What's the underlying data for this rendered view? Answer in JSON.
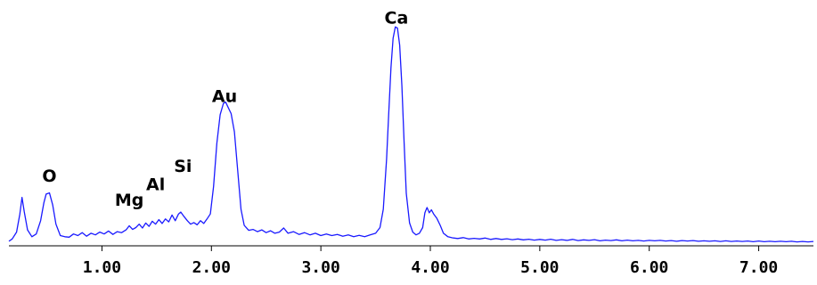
{
  "chart_data": {
    "type": "line",
    "title": "",
    "xlabel": "",
    "ylabel": "",
    "xlim": [
      0.15,
      7.5
    ],
    "ylim": [
      0,
      1000
    ],
    "grid": false,
    "legend": "none",
    "line_color": "#1a1aff",
    "x_ticks": [
      1.0,
      2.0,
      3.0,
      4.0,
      5.0,
      6.0,
      7.0
    ],
    "x_tick_labels": [
      "1.00",
      "2.00",
      "3.00",
      "4.00",
      "5.00",
      "6.00",
      "7.00"
    ],
    "peaks": [
      {
        "label": "O",
        "x": 0.52,
        "y": 282
      },
      {
        "label": "Mg",
        "x": 1.25,
        "y": 175
      },
      {
        "label": "Al",
        "x": 1.49,
        "y": 245
      },
      {
        "label": "Si",
        "x": 1.74,
        "y": 325
      },
      {
        "label": "Au",
        "x": 2.12,
        "y": 630
      },
      {
        "label": "Ca",
        "x": 3.69,
        "y": 975
      }
    ],
    "series": [
      {
        "values": [
          [
            0.15,
            20
          ],
          [
            0.18,
            30
          ],
          [
            0.22,
            60
          ],
          [
            0.25,
            140
          ],
          [
            0.27,
            212
          ],
          [
            0.29,
            150
          ],
          [
            0.32,
            70
          ],
          [
            0.36,
            40
          ],
          [
            0.4,
            52
          ],
          [
            0.44,
            110
          ],
          [
            0.47,
            190
          ],
          [
            0.49,
            227
          ],
          [
            0.52,
            232
          ],
          [
            0.55,
            180
          ],
          [
            0.58,
            95
          ],
          [
            0.62,
            45
          ],
          [
            0.66,
            40
          ],
          [
            0.7,
            38
          ],
          [
            0.74,
            52
          ],
          [
            0.78,
            45
          ],
          [
            0.82,
            58
          ],
          [
            0.86,
            42
          ],
          [
            0.9,
            55
          ],
          [
            0.94,
            48
          ],
          [
            0.98,
            60
          ],
          [
            1.02,
            52
          ],
          [
            1.06,
            65
          ],
          [
            1.1,
            50
          ],
          [
            1.14,
            62
          ],
          [
            1.18,
            58
          ],
          [
            1.22,
            70
          ],
          [
            1.25,
            88
          ],
          [
            1.28,
            72
          ],
          [
            1.31,
            80
          ],
          [
            1.34,
            95
          ],
          [
            1.37,
            78
          ],
          [
            1.4,
            100
          ],
          [
            1.43,
            85
          ],
          [
            1.46,
            108
          ],
          [
            1.49,
            95
          ],
          [
            1.52,
            115
          ],
          [
            1.55,
            98
          ],
          [
            1.58,
            118
          ],
          [
            1.61,
            105
          ],
          [
            1.64,
            135
          ],
          [
            1.67,
            110
          ],
          [
            1.7,
            140
          ],
          [
            1.72,
            148
          ],
          [
            1.75,
            128
          ],
          [
            1.78,
            110
          ],
          [
            1.81,
            95
          ],
          [
            1.84,
            102
          ],
          [
            1.87,
            92
          ],
          [
            1.9,
            110
          ],
          [
            1.93,
            98
          ],
          [
            1.96,
            118
          ],
          [
            1.99,
            140
          ],
          [
            2.02,
            260
          ],
          [
            2.05,
            450
          ],
          [
            2.08,
            575
          ],
          [
            2.11,
            625
          ],
          [
            2.13,
            630
          ],
          [
            2.15,
            610
          ],
          [
            2.18,
            580
          ],
          [
            2.21,
            500
          ],
          [
            2.24,
            330
          ],
          [
            2.27,
            160
          ],
          [
            2.3,
            90
          ],
          [
            2.34,
            68
          ],
          [
            2.38,
            72
          ],
          [
            2.42,
            62
          ],
          [
            2.46,
            70
          ],
          [
            2.5,
            58
          ],
          [
            2.54,
            66
          ],
          [
            2.58,
            55
          ],
          [
            2.62,
            60
          ],
          [
            2.66,
            78
          ],
          [
            2.7,
            55
          ],
          [
            2.75,
            62
          ],
          [
            2.8,
            50
          ],
          [
            2.85,
            58
          ],
          [
            2.9,
            48
          ],
          [
            2.95,
            55
          ],
          [
            3.0,
            45
          ],
          [
            3.05,
            52
          ],
          [
            3.1,
            45
          ],
          [
            3.15,
            50
          ],
          [
            3.2,
            42
          ],
          [
            3.25,
            48
          ],
          [
            3.3,
            40
          ],
          [
            3.35,
            46
          ],
          [
            3.4,
            40
          ],
          [
            3.45,
            48
          ],
          [
            3.5,
            55
          ],
          [
            3.54,
            80
          ],
          [
            3.57,
            160
          ],
          [
            3.6,
            380
          ],
          [
            3.62,
            580
          ],
          [
            3.64,
            780
          ],
          [
            3.66,
            910
          ],
          [
            3.68,
            960
          ],
          [
            3.7,
            955
          ],
          [
            3.72,
            880
          ],
          [
            3.74,
            700
          ],
          [
            3.76,
            460
          ],
          [
            3.78,
            230
          ],
          [
            3.81,
            100
          ],
          [
            3.84,
            60
          ],
          [
            3.87,
            48
          ],
          [
            3.9,
            55
          ],
          [
            3.93,
            80
          ],
          [
            3.95,
            145
          ],
          [
            3.97,
            168
          ],
          [
            3.99,
            145
          ],
          [
            4.01,
            158
          ],
          [
            4.03,
            140
          ],
          [
            4.06,
            120
          ],
          [
            4.09,
            90
          ],
          [
            4.12,
            55
          ],
          [
            4.16,
            40
          ],
          [
            4.2,
            35
          ],
          [
            4.25,
            32
          ],
          [
            4.3,
            36
          ],
          [
            4.35,
            30
          ],
          [
            4.4,
            33
          ],
          [
            4.45,
            30
          ],
          [
            4.5,
            34
          ],
          [
            4.55,
            28
          ],
          [
            4.6,
            32
          ],
          [
            4.65,
            28
          ],
          [
            4.7,
            31
          ],
          [
            4.75,
            27
          ],
          [
            4.8,
            30
          ],
          [
            4.85,
            26
          ],
          [
            4.9,
            29
          ],
          [
            4.95,
            25
          ],
          [
            5.0,
            28
          ],
          [
            5.05,
            25
          ],
          [
            5.1,
            29
          ],
          [
            5.15,
            24
          ],
          [
            5.2,
            27
          ],
          [
            5.25,
            24
          ],
          [
            5.3,
            28
          ],
          [
            5.35,
            23
          ],
          [
            5.4,
            26
          ],
          [
            5.45,
            24
          ],
          [
            5.5,
            27
          ],
          [
            5.55,
            22
          ],
          [
            5.6,
            25
          ],
          [
            5.65,
            23
          ],
          [
            5.7,
            26
          ],
          [
            5.75,
            22
          ],
          [
            5.8,
            25
          ],
          [
            5.85,
            22
          ],
          [
            5.9,
            24
          ],
          [
            5.95,
            21
          ],
          [
            6.0,
            24
          ],
          [
            6.05,
            22
          ],
          [
            6.1,
            24
          ],
          [
            6.15,
            21
          ],
          [
            6.2,
            23
          ],
          [
            6.25,
            20
          ],
          [
            6.3,
            23
          ],
          [
            6.35,
            21
          ],
          [
            6.4,
            23
          ],
          [
            6.45,
            20
          ],
          [
            6.5,
            22
          ],
          [
            6.55,
            20
          ],
          [
            6.6,
            22
          ],
          [
            6.65,
            19
          ],
          [
            6.7,
            22
          ],
          [
            6.75,
            19
          ],
          [
            6.8,
            21
          ],
          [
            6.85,
            19
          ],
          [
            6.9,
            21
          ],
          [
            6.95,
            18
          ],
          [
            7.0,
            21
          ],
          [
            7.05,
            18
          ],
          [
            7.1,
            20
          ],
          [
            7.15,
            18
          ],
          [
            7.2,
            20
          ],
          [
            7.25,
            18
          ],
          [
            7.3,
            20
          ],
          [
            7.35,
            17
          ],
          [
            7.4,
            19
          ],
          [
            7.45,
            17
          ],
          [
            7.5,
            19
          ]
        ]
      }
    ]
  }
}
